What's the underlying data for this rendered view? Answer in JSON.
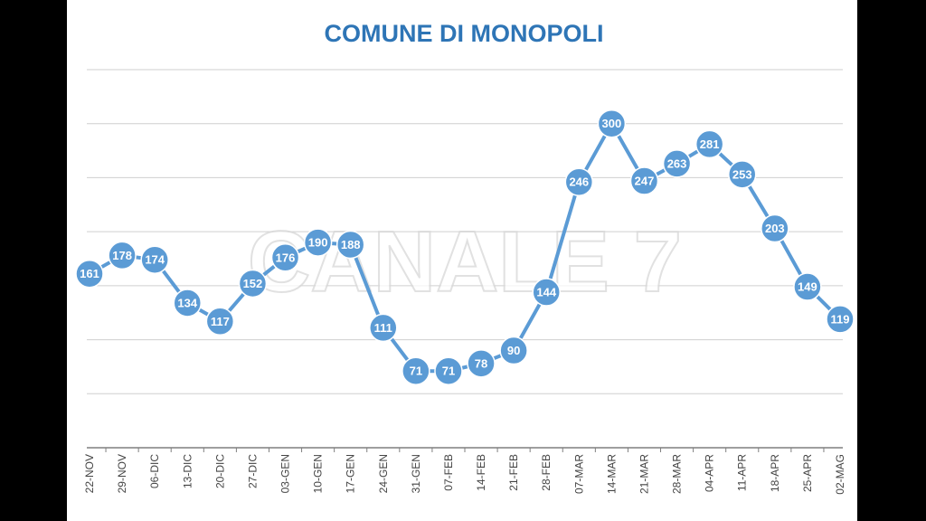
{
  "chart_data": {
    "type": "line",
    "title": "COMUNE DI MONOPOLI",
    "categories": [
      "22-NOV",
      "29-NOV",
      "06-DIC",
      "13-DIC",
      "20-DIC",
      "27-DIC",
      "03-GEN",
      "10-GEN",
      "17-GEN",
      "24-GEN",
      "31-GEN",
      "07-FEB",
      "14-FEB",
      "21-FEB",
      "28-FEB",
      "07-MAR",
      "14-MAR",
      "21-MAR",
      "28-MAR",
      "04-APR",
      "11-APR",
      "18-APR",
      "25-APR",
      "02-MAG"
    ],
    "values": [
      161,
      178,
      174,
      134,
      117,
      152,
      176,
      190,
      188,
      111,
      71,
      71,
      78,
      90,
      144,
      246,
      300,
      247,
      263,
      281,
      253,
      203,
      149,
      119
    ],
    "ylim": [
      0,
      350
    ],
    "gridlines": [
      50,
      100,
      150,
      200,
      250,
      300,
      350
    ],
    "grid": true,
    "data_labels": true,
    "line_color": "#5b9bd5",
    "title_color": "#2e75b6"
  },
  "watermark": {
    "text": "CANALE 7"
  }
}
